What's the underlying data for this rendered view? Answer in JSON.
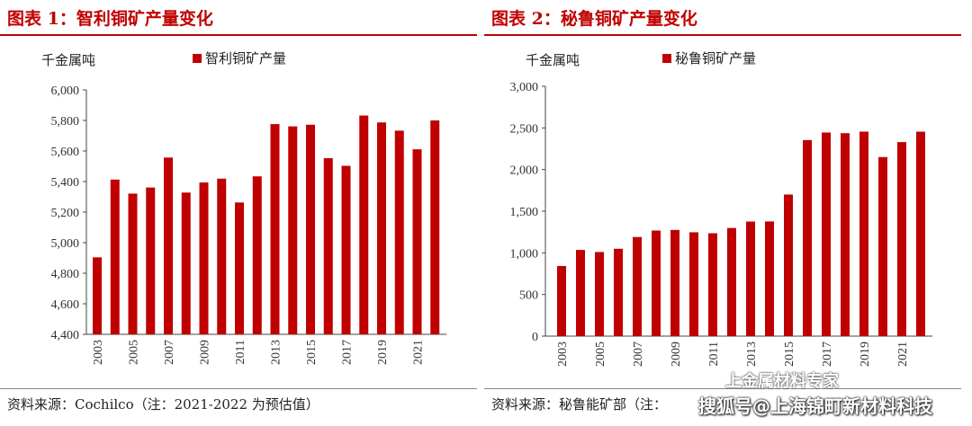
{
  "chart_data": [
    {
      "type": "bar",
      "title": "图表 1：智利铜矿产量变化",
      "ylabel": "千金属吨",
      "legend": "智利铜矿产量",
      "legend_position": "top",
      "ylim": [
        4400,
        6000
      ],
      "yticks": [
        4400,
        4600,
        4800,
        5000,
        5200,
        5400,
        5600,
        5800,
        6000
      ],
      "ytick_labels": [
        "4,400",
        "4,600",
        "4,800",
        "5,000",
        "5,200",
        "5,400",
        "5,600",
        "5,800",
        "6,000"
      ],
      "categories": [
        "2003",
        "2004",
        "2005",
        "2006",
        "2007",
        "2008",
        "2009",
        "2010",
        "2011",
        "2012",
        "2013",
        "2014",
        "2015",
        "2016",
        "2017",
        "2018",
        "2019",
        "2020",
        "2021",
        "2022"
      ],
      "xtick_labels": [
        "2003",
        "",
        "2005",
        "",
        "2007",
        "",
        "2009",
        "",
        "2011",
        "",
        "2013",
        "",
        "2015",
        "",
        "2017",
        "",
        "2019",
        "",
        "2021",
        ""
      ],
      "values": [
        4904,
        5413,
        5321,
        5361,
        5557,
        5328,
        5394,
        5419,
        5263,
        5434,
        5776,
        5761,
        5772,
        5553,
        5503,
        5832,
        5787,
        5733,
        5611,
        5800
      ],
      "color": "#c00000",
      "source": "资料来源：Cochilco（注：2021-2022 为预估值）"
    },
    {
      "type": "bar",
      "title": "图表 2：秘鲁铜矿产量变化",
      "ylabel": "千金属吨",
      "legend": "秘鲁铜矿产量",
      "legend_position": "top",
      "ylim": [
        0,
        3000
      ],
      "yticks": [
        0,
        500,
        1000,
        1500,
        2000,
        2500,
        3000
      ],
      "ytick_labels": [
        "0",
        "500",
        "1,000",
        "1,500",
        "2,000",
        "2,500",
        "3,000"
      ],
      "categories": [
        "2003",
        "2004",
        "2005",
        "2006",
        "2007",
        "2008",
        "2009",
        "2010",
        "2011",
        "2012",
        "2013",
        "2014",
        "2015",
        "2016",
        "2017",
        "2018",
        "2019",
        "2020",
        "2021",
        "2022"
      ],
      "xtick_labels": [
        "2003",
        "",
        "2005",
        "",
        "2007",
        "",
        "2009",
        "",
        "2011",
        "",
        "2013",
        "",
        "2015",
        "",
        "2017",
        "",
        "2019",
        "",
        "2021",
        ""
      ],
      "values": [
        842,
        1035,
        1010,
        1049,
        1190,
        1268,
        1275,
        1247,
        1235,
        1298,
        1376,
        1377,
        1700,
        2354,
        2445,
        2437,
        2455,
        2150,
        2330,
        2455
      ],
      "color": "#c00000",
      "source": "资料来源：秘鲁能矿部（注："
    }
  ],
  "watermark": {
    "line1": "上金属材料专家",
    "line2": "搜狐号@上海锦町新材料科技"
  }
}
